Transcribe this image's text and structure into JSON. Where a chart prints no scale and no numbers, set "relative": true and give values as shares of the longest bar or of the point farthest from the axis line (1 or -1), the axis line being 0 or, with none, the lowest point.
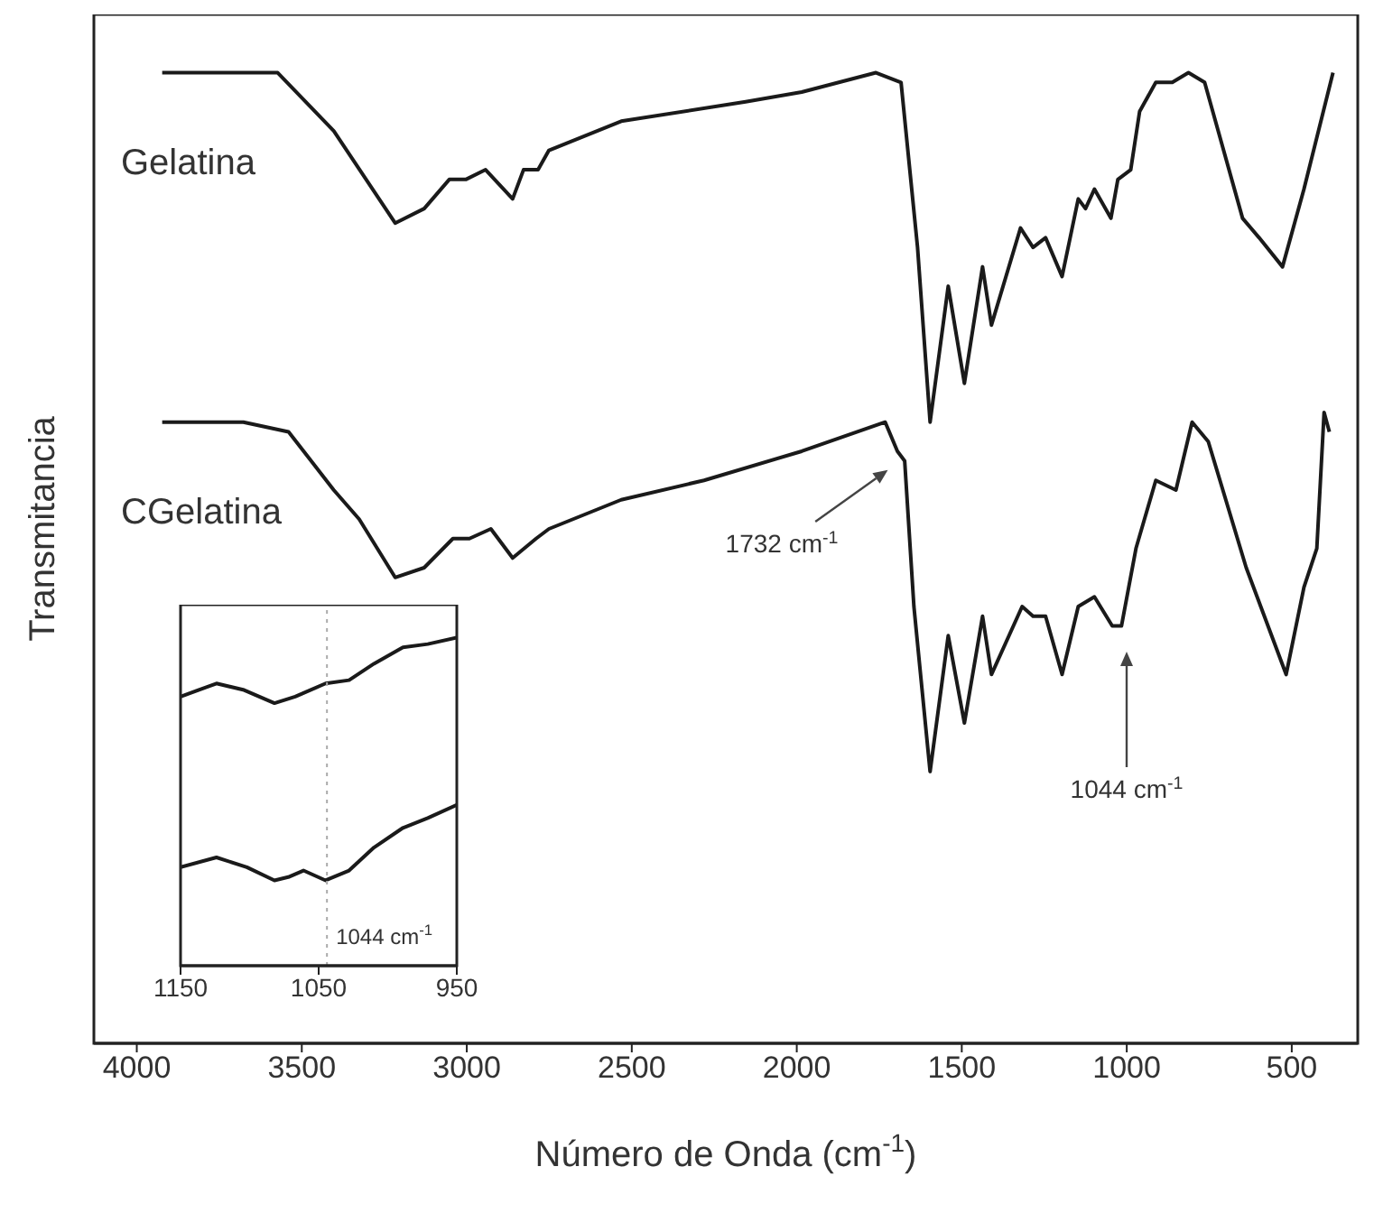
{
  "chart_data": [
    {
      "type": "line",
      "relative": true,
      "xlabel": "Número de Onda (cm$^{-1}$)",
      "ylabel": "Transmitancia",
      "xlim": [
        4130,
        300
      ],
      "xticks": [
        4000,
        3500,
        3000,
        2500,
        2000,
        1500,
        1000,
        500
      ],
      "tick_labels": "x",
      "series": [
        {
          "name": "Gelatina",
          "color": "#1a1a1a",
          "x": [
            3923,
            3573,
            3403,
            3217,
            3129,
            3053,
            3003,
            2943,
            2861,
            2828,
            2784,
            2751,
            2532,
            2155,
            1985,
            1760,
            1684,
            1634,
            1596,
            1541,
            1492,
            1437,
            1410,
            1322,
            1284,
            1246,
            1196,
            1147,
            1125,
            1098,
            1048,
            1027,
            988,
            961,
            912,
            862,
            813,
            764,
            649,
            599,
            528,
            463,
            375
          ],
          "values": [
            1.0,
            1.0,
            0.94,
            0.845,
            0.86,
            0.89,
            0.89,
            0.9,
            0.87,
            0.9,
            0.9,
            0.92,
            0.95,
            0.97,
            0.98,
            1.0,
            0.99,
            0.82,
            0.64,
            0.78,
            0.68,
            0.8,
            0.74,
            0.84,
            0.82,
            0.83,
            0.79,
            0.87,
            0.86,
            0.88,
            0.85,
            0.89,
            0.9,
            0.96,
            0.99,
            0.99,
            1.0,
            0.99,
            0.85,
            0.83,
            0.8,
            0.88,
            1.0
          ]
        },
        {
          "name": "CGelatina",
          "color": "#1a1a1a",
          "x": [
            3923,
            3677,
            3540,
            3403,
            3326,
            3217,
            3129,
            3042,
            2992,
            2927,
            2861,
            2790,
            2751,
            2532,
            2281,
            1985,
            1732,
            1695,
            1673,
            1645,
            1596,
            1541,
            1492,
            1437,
            1410,
            1317,
            1284,
            1246,
            1196,
            1147,
            1098,
            1044,
            1016,
            972,
            912,
            851,
            802,
            753,
            638,
            517,
            463,
            424,
            402,
            386
          ],
          "values": [
            0.64,
            0.64,
            0.63,
            0.57,
            0.54,
            0.48,
            0.49,
            0.52,
            0.52,
            0.53,
            0.5,
            0.52,
            0.53,
            0.56,
            0.58,
            0.61,
            0.64,
            0.61,
            0.6,
            0.45,
            0.28,
            0.42,
            0.33,
            0.44,
            0.38,
            0.45,
            0.44,
            0.44,
            0.38,
            0.45,
            0.46,
            0.43,
            0.43,
            0.51,
            0.58,
            0.57,
            0.64,
            0.62,
            0.49,
            0.38,
            0.47,
            0.51,
            0.65,
            0.63
          ]
        }
      ],
      "annotations": [
        "1732 cm$^{-1}$",
        "1044 cm$^{-1}$"
      ]
    },
    {
      "type": "line",
      "relative": true,
      "xlim": [
        1150,
        950
      ],
      "xticks": [
        1150,
        1050,
        950
      ],
      "tick_labels": "x",
      "series": [
        {
          "color": "#1a1a1a",
          "x": [
            1150,
            1124,
            1104,
            1082,
            1067,
            1045,
            1028,
            1010,
            989,
            971,
            950
          ],
          "values": [
            0.82,
            0.86,
            0.84,
            0.8,
            0.82,
            0.86,
            0.87,
            0.92,
            0.97,
            0.98,
            1.0
          ]
        },
        {
          "color": "#1a1a1a",
          "x": [
            1150,
            1124,
            1102,
            1082,
            1072,
            1061,
            1045,
            1028,
            1010,
            989,
            971,
            950
          ],
          "values": [
            0.3,
            0.33,
            0.3,
            0.26,
            0.27,
            0.29,
            0.26,
            0.29,
            0.36,
            0.42,
            0.45,
            0.49
          ]
        }
      ],
      "ref_lines": [
        {
          "axis": "x",
          "value": 1044,
          "label": "1044 cm$^{-1}$",
          "color": "#aaaaaa",
          "line_style": "dotted"
        }
      ]
    }
  ]
}
